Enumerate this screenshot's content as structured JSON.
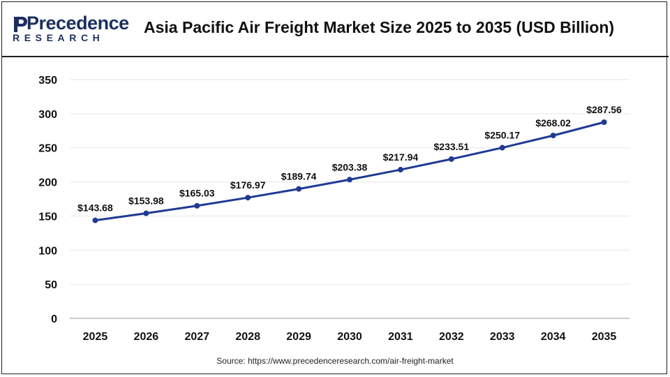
{
  "header": {
    "logo_text": "Precedence",
    "logo_subtext": "RESEARCH",
    "title": "Asia Pacific Air Freight Market Size 2025 to 2035 (USD Billion)"
  },
  "footer": {
    "source": "Source: https://www.precedenceresearch.com/air-freight-market"
  },
  "colors": {
    "line": "#1f3a93",
    "marker": "#1f3a93",
    "grid": "#e6e6e6",
    "logo": "#1c2f5e"
  },
  "chart_data": {
    "type": "line",
    "categories": [
      "2025",
      "2026",
      "2027",
      "2028",
      "2029",
      "2030",
      "2031",
      "2032",
      "2033",
      "2034",
      "2035"
    ],
    "series": [
      {
        "values": [
          143.68,
          153.98,
          165.03,
          176.97,
          189.74,
          203.38,
          217.94,
          233.51,
          250.17,
          268.02,
          287.56
        ],
        "labels": [
          "$143.68",
          "$153.98",
          "$165.03",
          "$176.97",
          "$189.74",
          "$203.38",
          "$217.94",
          "$233.51",
          "$250.17",
          "$268.02",
          "$287.56"
        ]
      }
    ],
    "ylim": [
      0,
      350
    ],
    "yticks": [
      "0",
      "50",
      "100",
      "150",
      "200",
      "250",
      "300",
      "350"
    ],
    "xlabel": "",
    "ylabel": "",
    "grid": true,
    "legend": "none"
  }
}
